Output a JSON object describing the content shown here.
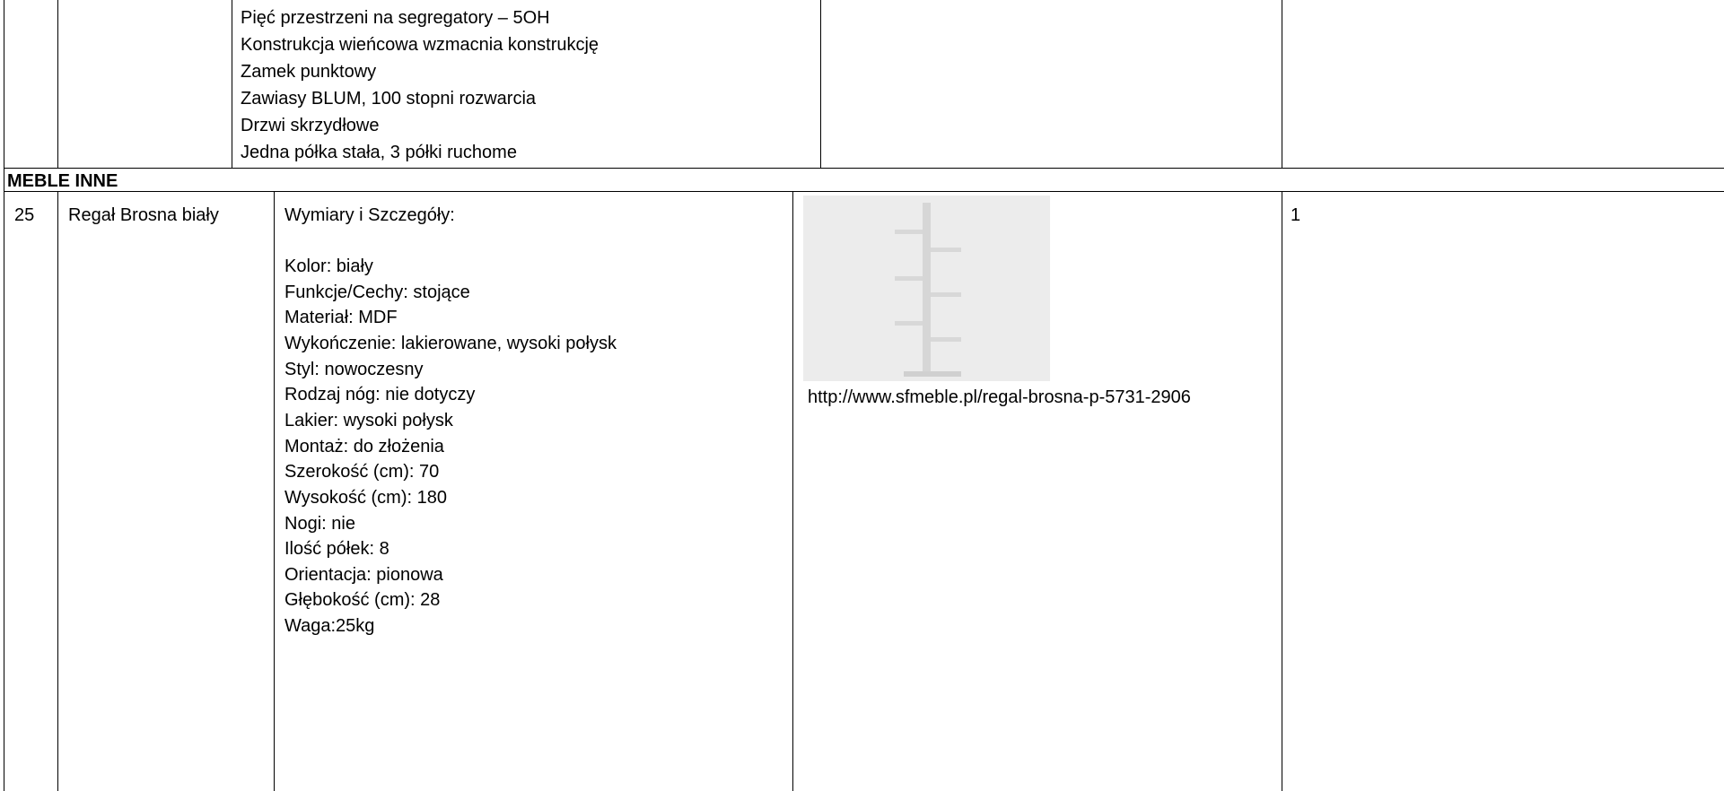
{
  "previous_row": {
    "description": [
      "Pięć przestrzeni na segregatory – 5OH",
      "Konstrukcja wieńcowa wzmacnia konstrukcję",
      "Zamek punktowy",
      "Zawiasy BLUM, 100 stopni rozwarcia",
      "Drzwi skrzydłowe",
      "Jedna półka stała, 3 półki ruchome"
    ]
  },
  "section": {
    "title": "MEBLE INNE"
  },
  "item": {
    "number": "25",
    "name": "Regał Brosna biały",
    "heading": "Wymiary i Szczegóły:",
    "details": [
      "Kolor: biały",
      "Funkcje/Cechy: stojące",
      "Materiał: MDF",
      "Wykończenie: lakierowane, wysoki połysk",
      "Styl: nowoczesny",
      "Rodzaj nóg: nie dotyczy",
      "Lakier: wysoki połysk",
      "Montaż: do złożenia",
      "Szerokość (cm): 70",
      "Wysokość (cm): 180",
      "Nogi: nie",
      "Ilość półek: 8",
      "Orientacja: pionowa",
      "Głębokość (cm): 28",
      "Waga:25kg"
    ],
    "link": "http://www.sfmeble.pl/regal-brosna-p-5731-2906",
    "quantity": "1"
  }
}
